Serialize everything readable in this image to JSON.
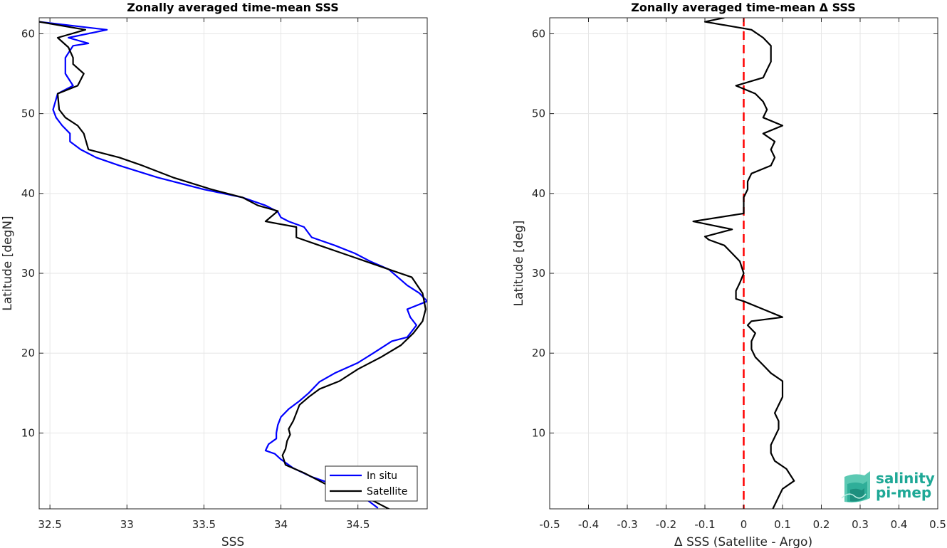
{
  "chart_data": [
    {
      "type": "line",
      "title": "Zonally averaged time-mean SSS",
      "xlabel": "SSS",
      "ylabel": "Latitude [degN]",
      "xlim": [
        32.43,
        34.95
      ],
      "ylim": [
        0.5,
        62
      ],
      "xticks": [
        32.5,
        33,
        33.5,
        34,
        34.5
      ],
      "xtick_labels": [
        "32.5",
        "33",
        "33.5",
        "34",
        "34.5"
      ],
      "yticks": [
        10,
        20,
        30,
        40,
        50,
        60
      ],
      "ytick_labels": [
        "10",
        "20",
        "30",
        "40",
        "50",
        "60"
      ],
      "grid": true,
      "legend_position": "bottom-right",
      "series": [
        {
          "name": "In situ",
          "color": "#0000ff",
          "x": [
            34.63,
            34.5,
            34.2,
            34.08,
            34.0,
            33.96,
            33.9,
            33.92,
            33.97,
            33.97,
            33.98,
            34.0,
            34.05,
            34.12,
            34.18,
            34.25,
            34.35,
            34.5,
            34.6,
            34.72,
            34.82,
            34.88,
            34.84,
            34.82,
            34.95,
            34.9,
            34.82,
            34.7,
            34.58,
            34.48,
            34.35,
            34.2,
            34.15,
            34.05,
            34.0,
            33.98,
            33.9,
            33.75,
            33.5,
            33.2,
            32.95,
            32.8,
            32.7,
            32.63,
            32.63,
            32.58,
            32.54,
            32.52,
            32.55,
            32.65,
            32.6,
            32.6,
            32.65,
            32.75,
            32.62,
            32.87,
            32.43
          ],
          "y": [
            0.6,
            2.5,
            4.5,
            5.6,
            6.7,
            7.4,
            7.8,
            8.6,
            9.3,
            10.0,
            11.0,
            12.0,
            13.0,
            14.0,
            15.0,
            16.4,
            17.5,
            18.8,
            20.0,
            21.5,
            22.0,
            23.5,
            24.5,
            25.5,
            26.5,
            27.5,
            28.5,
            30.5,
            31.5,
            32.5,
            33.5,
            34.5,
            35.8,
            36.5,
            37.0,
            37.7,
            38.5,
            39.5,
            40.5,
            42.0,
            43.5,
            44.5,
            45.5,
            46.5,
            47.5,
            48.5,
            49.5,
            50.5,
            52.5,
            53.5,
            55.0,
            57.0,
            58.5,
            58.8,
            59.5,
            60.5,
            61.5
          ]
        },
        {
          "name": "Satellite",
          "color": "#000000",
          "x": [
            34.75,
            34.6,
            34.3,
            34.15,
            34.03,
            34.01,
            34.03,
            34.04,
            34.06,
            34.05,
            34.08,
            34.1,
            34.12,
            34.18,
            34.25,
            34.38,
            34.5,
            34.65,
            34.78,
            34.86,
            34.92,
            34.94,
            34.92,
            34.85,
            34.7,
            34.55,
            34.4,
            34.25,
            34.1,
            34.1,
            33.9,
            33.98,
            33.85,
            33.75,
            33.55,
            33.3,
            33.1,
            32.95,
            32.75,
            32.72,
            32.68,
            32.6,
            32.56,
            32.55,
            32.68,
            32.72,
            32.65,
            32.65,
            32.62,
            32.55,
            32.73,
            32.43
          ],
          "y": [
            0.0,
            1.5,
            3.5,
            5.0,
            6.0,
            7.2,
            8.0,
            9.0,
            9.8,
            10.5,
            11.5,
            12.5,
            13.5,
            14.5,
            15.5,
            16.5,
            18.0,
            19.5,
            21.0,
            22.5,
            24.0,
            25.5,
            27.5,
            29.5,
            30.5,
            31.5,
            32.5,
            33.5,
            34.5,
            35.8,
            36.5,
            37.8,
            38.5,
            39.5,
            40.5,
            42.0,
            43.5,
            44.5,
            45.5,
            47.5,
            48.5,
            49.5,
            50.5,
            52.5,
            53.5,
            55.0,
            56.2,
            57.0,
            58.3,
            59.5,
            60.5,
            61.5
          ]
        }
      ]
    },
    {
      "type": "line",
      "title": "Zonally averaged time-mean Δ SSS",
      "xlabel": "Δ SSS (Satellite - Argo)",
      "ylabel": "Latitude [deg]",
      "xlim": [
        -0.5,
        0.5
      ],
      "ylim": [
        0.5,
        62
      ],
      "xticks": [
        -0.5,
        -0.4,
        -0.3,
        -0.2,
        -0.1,
        0,
        0.1,
        0.2,
        0.3,
        0.4,
        0.5
      ],
      "xtick_labels": [
        "-0.5",
        "-0.4",
        "-0.3",
        "-0.2",
        "-0.1",
        "0",
        "0.1",
        "0.2",
        "0.3",
        "0.4",
        "0.5"
      ],
      "yticks": [
        10,
        20,
        30,
        40,
        50,
        60
      ],
      "ytick_labels": [
        "10",
        "20",
        "30",
        "40",
        "50",
        "60"
      ],
      "grid": true,
      "reference_line": {
        "x": 0,
        "color": "#ff0000",
        "style": "dashed"
      },
      "series": [
        {
          "color": "#000000",
          "x": [
            0.07,
            0.08,
            0.09,
            0.1,
            0.13,
            0.11,
            0.08,
            0.07,
            0.07,
            0.08,
            0.09,
            0.09,
            0.08,
            0.09,
            0.1,
            0.1,
            0.1,
            0.07,
            0.05,
            0.03,
            0.02,
            0.02,
            0.03,
            0.01,
            0.02,
            0.1,
            0.05,
            0.0,
            -0.02,
            -0.02,
            -0.01,
            0.0,
            -0.01,
            -0.03,
            -0.05,
            -0.09,
            -0.1,
            -0.03,
            -0.13,
            0.0,
            0.0,
            0.01,
            0.01,
            0.02,
            0.07,
            0.08,
            0.07,
            0.08,
            0.05,
            0.1,
            0.05,
            0.06,
            0.05,
            0.03,
            -0.02,
            0.05,
            0.06,
            0.07,
            0.07,
            0.07,
            0.05,
            0.02,
            -0.1,
            -0.05
          ],
          "y": [
            0.0,
            1.0,
            2.0,
            3.0,
            4.0,
            5.5,
            6.5,
            7.5,
            8.5,
            9.5,
            10.5,
            11.5,
            12.5,
            13.5,
            14.5,
            15.5,
            16.5,
            17.5,
            18.5,
            19.5,
            20.5,
            21.5,
            22.5,
            23.5,
            24.0,
            24.5,
            25.5,
            26.5,
            26.8,
            27.8,
            28.8,
            30.0,
            31.5,
            32.5,
            33.5,
            34.2,
            34.6,
            35.5,
            36.5,
            37.5,
            39.5,
            40.5,
            41.5,
            42.5,
            43.5,
            44.5,
            45.5,
            46.5,
            47.5,
            48.5,
            49.5,
            50.5,
            51.5,
            52.5,
            53.5,
            54.5,
            55.5,
            56.5,
            57.5,
            58.5,
            59.5,
            60.5,
            61.5,
            62.0
          ]
        }
      ]
    }
  ],
  "logo": {
    "line1": "salinity",
    "line2": "pi-mep"
  }
}
